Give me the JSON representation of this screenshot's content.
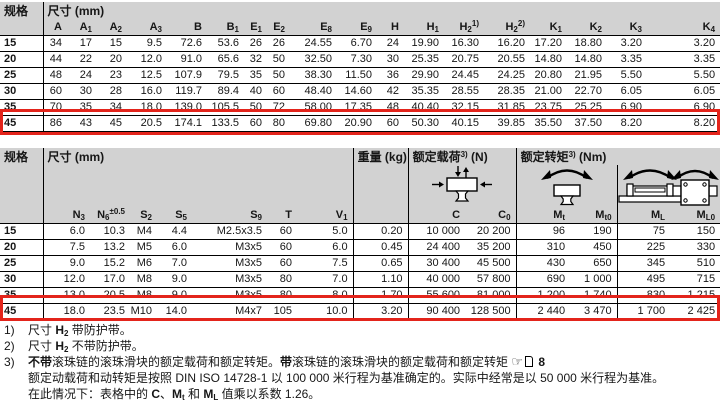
{
  "colors": {
    "header_bg": "#d2d2d2",
    "highlight_red": "#e3241b",
    "table_border": "#000000"
  },
  "table1": {
    "spec_header": "规格",
    "unit_header": "尺寸 (mm)",
    "columns": [
      {
        "b": "A"
      },
      {
        "b": "A",
        "s": "1"
      },
      {
        "b": "A",
        "s": "2"
      },
      {
        "b": "A",
        "s": "3"
      },
      {
        "b": "B"
      },
      {
        "b": "B",
        "s": "1"
      },
      {
        "b": "E",
        "s": "1"
      },
      {
        "b": "E",
        "s": "2"
      },
      {
        "b": "E",
        "s": "8"
      },
      {
        "b": "E",
        "s": "9"
      },
      {
        "b": "H"
      },
      {
        "b": "H",
        "s": "1"
      },
      {
        "b": "H",
        "s": "2",
        "p": "1)"
      },
      {
        "b": "H",
        "s": "2",
        "p": "2)"
      },
      {
        "b": "K",
        "s": "1"
      },
      {
        "b": "K",
        "s": "2"
      },
      {
        "b": "K",
        "s": "3"
      },
      {
        "b": "K",
        "s": "4"
      }
    ],
    "rows": [
      {
        "size": "15",
        "highlight": false,
        "values": [
          "34",
          "17",
          "15",
          "9.5",
          "72.6",
          "53.6",
          "26",
          "26",
          "24.55",
          "6.70",
          "24",
          "19.90",
          "16.30",
          "16.20",
          "17.20",
          "18.80",
          "3.20",
          "3.20"
        ]
      },
      {
        "size": "20",
        "highlight": false,
        "values": [
          "44",
          "22",
          "20",
          "12.0",
          "91.0",
          "65.6",
          "32",
          "50",
          "32.50",
          "7.30",
          "30",
          "25.35",
          "20.75",
          "20.55",
          "14.80",
          "14.80",
          "3.35",
          "3.35"
        ]
      },
      {
        "size": "25",
        "highlight": false,
        "values": [
          "48",
          "24",
          "23",
          "12.5",
          "107.9",
          "79.5",
          "35",
          "50",
          "38.30",
          "11.50",
          "36",
          "29.90",
          "24.45",
          "24.25",
          "20.80",
          "21.95",
          "5.50",
          "5.50"
        ]
      },
      {
        "size": "30",
        "highlight": false,
        "values": [
          "60",
          "30",
          "28",
          "16.0",
          "119.7",
          "89.4",
          "40",
          "60",
          "48.40",
          "14.60",
          "42",
          "35.35",
          "28.55",
          "28.35",
          "21.00",
          "22.70",
          "6.05",
          "6.05"
        ]
      },
      {
        "size": "35",
        "highlight": false,
        "values": [
          "70",
          "35",
          "34",
          "18.0",
          "139.0",
          "105.5",
          "50",
          "72",
          "58.00",
          "17.35",
          "48",
          "40.40",
          "32.15",
          "31.85",
          "23.75",
          "25.25",
          "6.90",
          "6.90"
        ]
      },
      {
        "size": "45",
        "highlight": true,
        "values": [
          "86",
          "43",
          "45",
          "20.5",
          "174.1",
          "133.5",
          "60",
          "80",
          "69.80",
          "20.90",
          "60",
          "50.30",
          "40.15",
          "39.85",
          "35.50",
          "37.50",
          "8.20",
          "8.20"
        ]
      }
    ]
  },
  "table2": {
    "spec_header": "规格",
    "unit_header": "尺寸 (mm)",
    "weight_header": "重量 (kg)",
    "load_header": {
      "label": "额定载荷",
      "sup": "3)",
      "unit": "(N)"
    },
    "torque_header": {
      "label": "额定转矩",
      "sup": "3)",
      "unit": "(Nm)"
    },
    "columns": [
      {
        "b": "N",
        "s": "3"
      },
      {
        "b": "N",
        "s": "6",
        "p": "±0.5"
      },
      {
        "b": "S",
        "s": "2"
      },
      {
        "b": "S",
        "s": "5"
      },
      {
        "b": "S",
        "s": "9"
      },
      {
        "b": "T"
      },
      {
        "b": "V",
        "s": "1"
      },
      {
        "b": ""
      },
      {
        "b": "C"
      },
      {
        "b": "C",
        "s": "0"
      },
      {
        "b": "M",
        "s": "t"
      },
      {
        "b": "M",
        "s": "t0"
      },
      {
        "b": "M",
        "s": "L"
      },
      {
        "b": "M",
        "s": "L0"
      }
    ],
    "icon_names": [
      "load-rating-icon",
      "torque-mt-icon",
      "torque-ml-icon",
      "torque-ml0-icon"
    ],
    "rows": [
      {
        "size": "15",
        "highlight": false,
        "values": [
          "6.0",
          "10.3",
          "M4",
          "4.4",
          "M2.5x3.5",
          "60",
          "5.0",
          "0.20",
          "10 000",
          "20 200",
          "96",
          "190",
          "75",
          "150"
        ]
      },
      {
        "size": "20",
        "highlight": false,
        "values": [
          "7.5",
          "13.2",
          "M5",
          "6.0",
          "M3x5",
          "60",
          "6.0",
          "0.45",
          "24 400",
          "35 200",
          "310",
          "450",
          "225",
          "330"
        ]
      },
      {
        "size": "25",
        "highlight": false,
        "values": [
          "9.0",
          "15.2",
          "M6",
          "7.0",
          "M3x5",
          "60",
          "7.5",
          "0.65",
          "30 400",
          "45 500",
          "430",
          "650",
          "345",
          "510"
        ]
      },
      {
        "size": "30",
        "highlight": false,
        "values": [
          "12.0",
          "17.0",
          "M8",
          "9.0",
          "M3x5",
          "80",
          "7.0",
          "1.10",
          "40 000",
          "57 800",
          "690",
          "1 000",
          "495",
          "715"
        ]
      },
      {
        "size": "35",
        "highlight": false,
        "values": [
          "13.0",
          "20.5",
          "M8",
          "9.0",
          "M3x5",
          "80",
          "8.0",
          "1.70",
          "55 600",
          "81 000",
          "1 200",
          "1 740",
          "830",
          "1 215"
        ]
      },
      {
        "size": "45",
        "highlight": true,
        "values": [
          "18.0",
          "23.5",
          "M10",
          "14.0",
          "M4x7",
          "105",
          "10.0",
          "3.20",
          "90 400",
          "128 500",
          "2 440",
          "3 470",
          "1 700",
          "2 425"
        ]
      }
    ]
  },
  "footnotes": [
    {
      "marker": "1)",
      "lines": [
        [
          {
            "t": "尺寸 "
          },
          {
            "t": "H",
            "b": true
          },
          {
            "t": "2",
            "b": true,
            "sub": true
          },
          {
            "t": " 带防护带。"
          }
        ]
      ]
    },
    {
      "marker": "2)",
      "lines": [
        [
          {
            "t": "尺寸 "
          },
          {
            "t": "H",
            "b": true
          },
          {
            "t": "2",
            "b": true,
            "sub": true
          },
          {
            "t": " 不带防护带。"
          }
        ]
      ]
    },
    {
      "marker": "3)",
      "lines": [
        [
          {
            "t": "不带",
            "b": true
          },
          {
            "t": "滚珠链的滚珠滑块的额定载荷和额定转矩。"
          },
          {
            "t": "带",
            "b": true
          },
          {
            "t": "滚珠链的滚珠滑块的额定载荷和额定转矩 "
          },
          {
            "icon": "pointer",
            "t": "☞"
          },
          {
            "icon": "page"
          },
          {
            "t": " 8",
            "b": true
          }
        ],
        [
          {
            "t": "额定动载荷和动转矩是按照 DIN ISO 14728-1 以 100 000 米行程为基准确定的。实际中经常是以 50 000 米行程为基准。"
          }
        ],
        [
          {
            "t": "在此情况下：表格中的 "
          },
          {
            "t": "C",
            "b": true
          },
          {
            "t": "、"
          },
          {
            "t": "M",
            "b": true
          },
          {
            "t": "t",
            "b": true,
            "sub": true
          },
          {
            "t": " 和 "
          },
          {
            "t": "M",
            "b": true
          },
          {
            "t": "L",
            "b": true,
            "sub": true
          },
          {
            "t": " 值乘以系数 1.26。"
          }
        ]
      ]
    }
  ]
}
